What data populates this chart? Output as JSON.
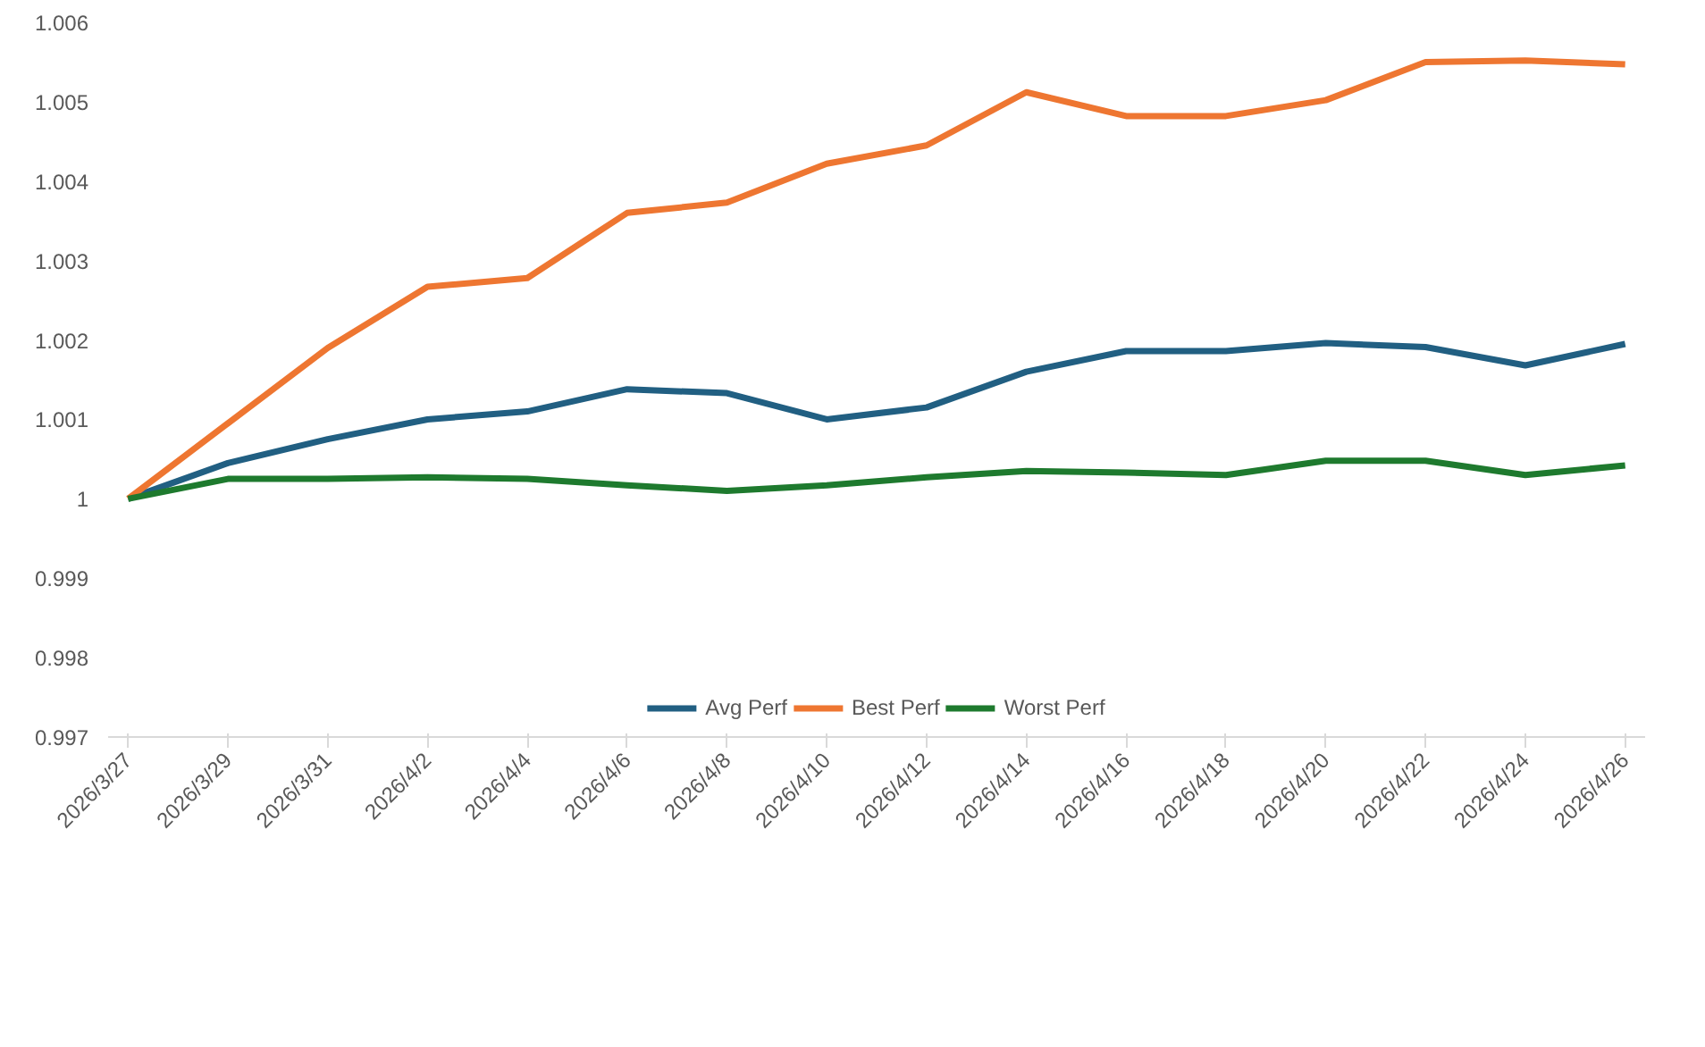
{
  "chart_data": {
    "type": "line",
    "categories": [
      "2026/3/27",
      "2026/3/29",
      "2026/3/31",
      "2026/4/2",
      "2026/4/4",
      "2026/4/6",
      "2026/4/8",
      "2026/4/10",
      "2026/4/12",
      "2026/4/14",
      "2026/4/16",
      "2026/4/18",
      "2026/4/20",
      "2026/4/22",
      "2026/4/24",
      "2026/4/26"
    ],
    "series": [
      {
        "name": "Avg Perf",
        "color": "#215f82",
        "values": [
          1.0,
          1.00045,
          1.00075,
          1.001,
          1.0011,
          1.00138,
          1.00133,
          1.001,
          1.00115,
          1.0016,
          1.00186,
          1.00186,
          1.00196,
          1.00191,
          1.00168,
          1.00195
        ]
      },
      {
        "name": "Best Perf",
        "color": "#ee7631",
        "values": [
          1.0,
          1.00095,
          1.0019,
          1.00267,
          1.00278,
          1.0036,
          1.00373,
          1.00422,
          1.00445,
          1.00512,
          1.00482,
          1.00482,
          1.00502,
          1.0055,
          1.00552,
          1.00547
        ]
      },
      {
        "name": "Worst Perf",
        "color": "#1e7a2e",
        "values": [
          1.0,
          1.00025,
          1.00025,
          1.00027,
          1.00025,
          1.00017,
          1.0001,
          1.00017,
          1.00027,
          1.00035,
          1.00033,
          1.0003,
          1.00048,
          1.00048,
          1.0003,
          1.00042
        ]
      }
    ],
    "ylim": [
      0.997,
      1.006
    ],
    "yticks": [
      0.997,
      0.998,
      0.999,
      1,
      1.001,
      1.002,
      1.003,
      1.004,
      1.005,
      1.006
    ],
    "grid": false,
    "legend": "bottom",
    "marker": "none",
    "line_style": "solid"
  }
}
